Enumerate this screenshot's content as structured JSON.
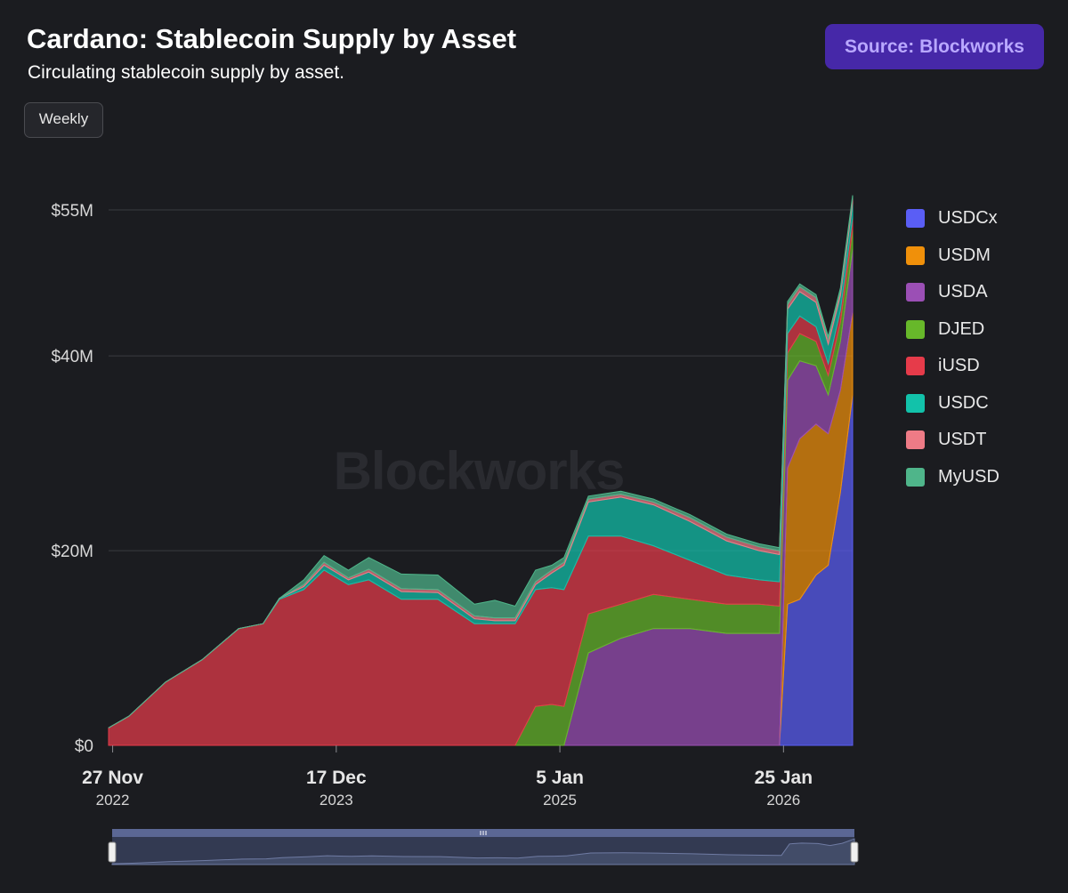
{
  "header": {
    "title": "Cardano: Stablecoin Supply by Asset",
    "subtitle": "Circulating stablecoin supply by asset.",
    "source_label": "Source: Blockworks",
    "interval_label": "Weekly"
  },
  "watermark": "Blockworks",
  "colors": {
    "background": "#1b1c20",
    "source_button": "#4628a8",
    "source_text": "#b9a8ff"
  },
  "chart_data": {
    "type": "area",
    "stacked": true,
    "x_ticks": [
      {
        "date": "2022-11-27",
        "label": "27 Nov",
        "year": "2022"
      },
      {
        "date": "2023-12-17",
        "label": "17 Dec",
        "year": "2023"
      },
      {
        "date": "2025-01-05",
        "label": "5 Jan",
        "year": "2025"
      },
      {
        "date": "2026-01-25",
        "label": "25 Jan",
        "year": "2026"
      }
    ],
    "y_ticks": [
      {
        "value": 0,
        "label": "$0"
      },
      {
        "value": 20000000,
        "label": "$20M"
      },
      {
        "value": 40000000,
        "label": "$40M"
      },
      {
        "value": 55000000,
        "label": "$55M"
      }
    ],
    "ylim": [
      0,
      55000000
    ],
    "xlim": [
      "2022-11-20",
      "2026-05-24"
    ],
    "grid": true,
    "legend_position": "right",
    "x": [
      "2022-11-20",
      "2022-12-25",
      "2023-02-26",
      "2023-04-30",
      "2023-07-02",
      "2023-08-13",
      "2023-09-10",
      "2023-10-22",
      "2023-11-26",
      "2024-01-07",
      "2024-02-11",
      "2024-04-07",
      "2024-06-09",
      "2024-08-11",
      "2024-09-15",
      "2024-10-20",
      "2024-11-24",
      "2024-12-22",
      "2025-01-12",
      "2025-02-23",
      "2025-04-20",
      "2025-06-15",
      "2025-08-17",
      "2025-10-19",
      "2025-12-14",
      "2026-01-18",
      "2026-02-01",
      "2026-02-22",
      "2026-03-22",
      "2026-04-12",
      "2026-05-03",
      "2026-05-24"
    ],
    "series": [
      {
        "name": "USDCx",
        "color": "#5a5ef5",
        "values": [
          0,
          0,
          0,
          0,
          0,
          0,
          0,
          0,
          0,
          0,
          0,
          0,
          0,
          0,
          0,
          0,
          0,
          0,
          0,
          0,
          0,
          0,
          0,
          0,
          0,
          0,
          14500000,
          15000000,
          17500000,
          18500000,
          26000000,
          36000000
        ]
      },
      {
        "name": "USDM",
        "color": "#f0900a",
        "values": [
          0,
          0,
          0,
          0,
          0,
          0,
          0,
          0,
          0,
          0,
          0,
          0,
          0,
          0,
          0,
          0,
          0,
          0,
          0,
          0,
          0,
          0,
          0,
          0,
          0,
          0,
          14000000,
          16500000,
          15500000,
          13500000,
          10500000,
          8500000
        ]
      },
      {
        "name": "USDA",
        "color": "#9b4fb5",
        "values": [
          0,
          0,
          0,
          0,
          0,
          0,
          0,
          0,
          0,
          0,
          0,
          0,
          0,
          0,
          0,
          0,
          0,
          0,
          0,
          9500000,
          11000000,
          12000000,
          12000000,
          11500000,
          11500000,
          11500000,
          9000000,
          8000000,
          6000000,
          4000000,
          5000000,
          6500000
        ]
      },
      {
        "name": "DJED",
        "color": "#67b82a",
        "values": [
          0,
          0,
          0,
          0,
          0,
          0,
          0,
          0,
          0,
          0,
          0,
          0,
          0,
          0,
          0,
          0,
          4000000,
          4200000,
          4000000,
          4000000,
          3500000,
          3500000,
          3000000,
          3000000,
          3000000,
          2800000,
          2800000,
          2800000,
          2500000,
          2000000,
          2000000,
          2000000
        ]
      },
      {
        "name": "iUSD",
        "color": "#e63b4a",
        "values": [
          1800000,
          3000000,
          6500000,
          8800000,
          12000000,
          12500000,
          15000000,
          16000000,
          18000000,
          16500000,
          17000000,
          15000000,
          15000000,
          12500000,
          12500000,
          12500000,
          12000000,
          12000000,
          12000000,
          8000000,
          7000000,
          5000000,
          4000000,
          3000000,
          2500000,
          2500000,
          2000000,
          1800000,
          1500000,
          1200000,
          1200000,
          1200000
        ]
      },
      {
        "name": "USDC",
        "color": "#12c2aa",
        "values": [
          0,
          0,
          0,
          0,
          0,
          0,
          100000,
          300000,
          500000,
          500000,
          800000,
          800000,
          700000,
          500000,
          300000,
          300000,
          500000,
          1500000,
          2500000,
          3500000,
          4000000,
          4200000,
          4000000,
          3500000,
          3000000,
          2800000,
          2500000,
          2500000,
          2500000,
          2000000,
          1500000,
          1500000
        ]
      },
      {
        "name": "USDT",
        "color": "#ee7b86",
        "values": [
          0,
          0,
          0,
          0,
          0,
          0,
          0,
          200000,
          300000,
          200000,
          300000,
          300000,
          300000,
          300000,
          300000,
          300000,
          300000,
          300000,
          300000,
          300000,
          300000,
          300000,
          400000,
          400000,
          400000,
          400000,
          500000,
          500000,
          500000,
          500000,
          500000,
          500000
        ]
      },
      {
        "name": "MyUSD",
        "color": "#4fb58a",
        "values": [
          0,
          0,
          0,
          0,
          0,
          0,
          0,
          500000,
          700000,
          800000,
          1200000,
          1500000,
          1500000,
          1200000,
          1800000,
          1200000,
          1200000,
          500000,
          500000,
          300000,
          300000,
          300000,
          300000,
          300000,
          300000,
          300000,
          300000,
          300000,
          300000,
          300000,
          300000,
          300000
        ]
      }
    ]
  }
}
